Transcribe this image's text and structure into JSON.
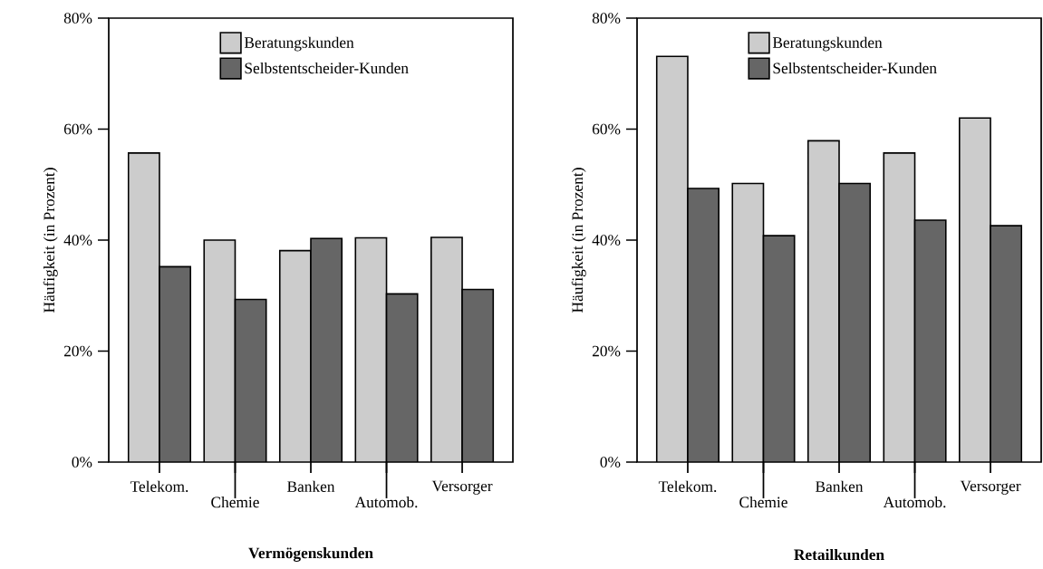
{
  "chart_data": [
    {
      "type": "bar",
      "title": "Vermögenskunden",
      "ylabel": "Häufigkeit (in Prozent)",
      "categories": [
        "Telekom.",
        "Chemie",
        "Banken",
        "Automob.",
        "Versorger"
      ],
      "series": [
        {
          "name": "Beratungskunden",
          "color": "#cccccc",
          "values": [
            55.7,
            40.0,
            38.1,
            40.4,
            40.5
          ]
        },
        {
          "name": "Selbstentscheider-Kunden",
          "color": "#666666",
          "values": [
            35.2,
            29.3,
            40.3,
            30.3,
            31.1
          ]
        }
      ],
      "ylim": [
        0,
        80
      ],
      "yticks": [
        {
          "value": 0,
          "label": "0%"
        },
        {
          "value": 20,
          "label": "20%"
        },
        {
          "value": 40,
          "label": "40%"
        },
        {
          "value": 60,
          "label": "60%"
        },
        {
          "value": 80,
          "label": "80%"
        }
      ],
      "legend": "top"
    },
    {
      "type": "bar",
      "title": "Retailkunden",
      "ylabel": "Häufigkeit (in Prozent)",
      "categories": [
        "Telekom.",
        "Chemie",
        "Banken",
        "Automob.",
        "Versorger"
      ],
      "series": [
        {
          "name": "Beratungskunden",
          "color": "#cccccc",
          "values": [
            73.1,
            50.2,
            57.9,
            55.7,
            62.0
          ]
        },
        {
          "name": "Selbstentscheider-Kunden",
          "color": "#666666",
          "values": [
            49.3,
            40.8,
            50.2,
            43.6,
            42.6
          ]
        }
      ],
      "ylim": [
        0,
        80
      ],
      "yticks": [
        {
          "value": 0,
          "label": "0%"
        },
        {
          "value": 20,
          "label": "20%"
        },
        {
          "value": 40,
          "label": "40%"
        },
        {
          "value": 60,
          "label": "60%"
        },
        {
          "value": 80,
          "label": "80%"
        }
      ],
      "legend": "top"
    }
  ]
}
